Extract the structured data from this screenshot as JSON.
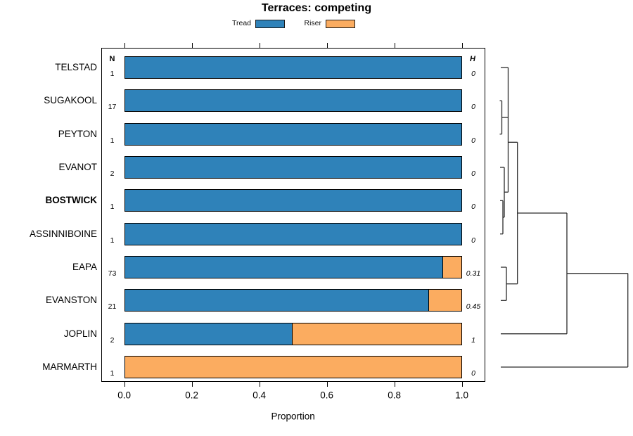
{
  "title": "Terraces: competing",
  "legend": {
    "tread_label": "Tread",
    "riser_label": "Riser"
  },
  "headers": {
    "n": "N",
    "h": "H"
  },
  "x_axis": {
    "label": "Proportion"
  },
  "colors": {
    "tread": "#2f82b9",
    "riser": "#fbac60",
    "bar_border": "#000000",
    "dendrogram_line": "#2b2b2b"
  },
  "chart_data": {
    "type": "bar",
    "orientation": "horizontal-stacked",
    "title": "Terraces: competing",
    "xlabel": "Proportion",
    "xlim": [
      0,
      1
    ],
    "x_ticks": {
      "labels": [
        "0.0",
        "0.2",
        "0.4",
        "0.6",
        "0.8",
        "1.0"
      ],
      "values": [
        0,
        0.2,
        0.4,
        0.6,
        0.8,
        1.0
      ]
    },
    "series_names": [
      "Tread",
      "Riser"
    ],
    "rows": [
      {
        "label": "TELSTAD",
        "bold": false,
        "n": "1",
        "tread": 1.0,
        "riser": 0.0,
        "h": "0"
      },
      {
        "label": "SUGAKOOL",
        "bold": false,
        "n": "17",
        "tread": 1.0,
        "riser": 0.0,
        "h": "0"
      },
      {
        "label": "PEYTON",
        "bold": false,
        "n": "1",
        "tread": 1.0,
        "riser": 0.0,
        "h": "0"
      },
      {
        "label": "EVANOT",
        "bold": false,
        "n": "2",
        "tread": 1.0,
        "riser": 0.0,
        "h": "0"
      },
      {
        "label": "BOSTWICK",
        "bold": true,
        "n": "1",
        "tread": 1.0,
        "riser": 0.0,
        "h": "0"
      },
      {
        "label": "ASSINNIBOINE",
        "bold": false,
        "n": "1",
        "tread": 1.0,
        "riser": 0.0,
        "h": "0"
      },
      {
        "label": "EAPA",
        "bold": false,
        "n": "73",
        "tread": 0.945,
        "riser": 0.055,
        "h": "0.31"
      },
      {
        "label": "EVANSTON",
        "bold": false,
        "n": "21",
        "tread": 0.905,
        "riser": 0.095,
        "h": "0.45"
      },
      {
        "label": "JOPLIN",
        "bold": false,
        "n": "2",
        "tread": 0.5,
        "riser": 0.5,
        "h": "1"
      },
      {
        "label": "MARMARTH",
        "bold": false,
        "n": "1",
        "tread": 0.0,
        "riser": 1.0,
        "h": "0"
      }
    ],
    "dendrogram": {
      "segments": [
        [
          712,
          96,
          722.5,
          96
        ],
        [
          710.5,
          143.3,
          713.5,
          143.3
        ],
        [
          710.5,
          190.7,
          713.5,
          190.7
        ],
        [
          713.5,
          143.3,
          713.5,
          190.7
        ],
        [
          713.5,
          167,
          722.5,
          167
        ],
        [
          722.5,
          96,
          722.5,
          273.2
        ],
        [
          711,
          238,
          717,
          238
        ],
        [
          717,
          238,
          717,
          309
        ],
        [
          717,
          273.2,
          722.5,
          273.2
        ],
        [
          711,
          285.3,
          715,
          285.3
        ],
        [
          711,
          332.7,
          715,
          332.7
        ],
        [
          715,
          285.3,
          715,
          332.7
        ],
        [
          715,
          309,
          717,
          309
        ],
        [
          722.5,
          202.3,
          735.7,
          202.3
        ],
        [
          712,
          380,
          720,
          380
        ],
        [
          712,
          427.3,
          720,
          427.3
        ],
        [
          720,
          380,
          720,
          427.3
        ],
        [
          720,
          403.7,
          735.7,
          403.7
        ],
        [
          735.7,
          202.3,
          735.7,
          403.7
        ],
        [
          735.7,
          303,
          806,
          303
        ],
        [
          712,
          474.7,
          806,
          474.7
        ],
        [
          806,
          303,
          806,
          474.7
        ],
        [
          806,
          388.8,
          892.7,
          388.8
        ],
        [
          712,
          522,
          892.7,
          522
        ],
        [
          892.7,
          388.8,
          892.7,
          522
        ]
      ]
    }
  }
}
